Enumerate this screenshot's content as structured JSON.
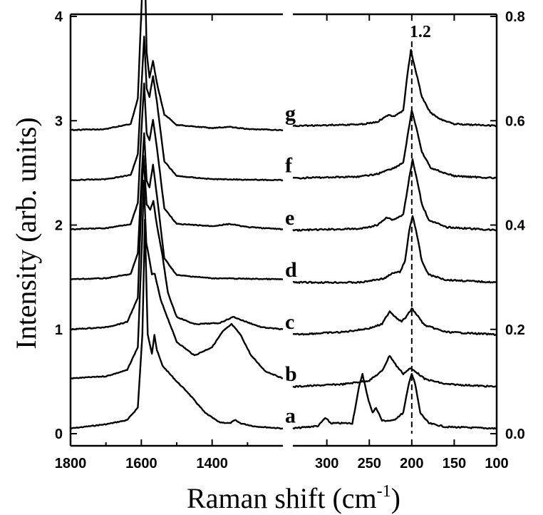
{
  "chart_data": {
    "type": "line",
    "xlabel": "Raman shift (cm",
    "xlabel_sup": "-1",
    "xlabel_close": ")",
    "ylabel": "Intensity (arb. units)",
    "left_panel": {
      "xlim": [
        1800,
        1200
      ],
      "xticks": [
        "1800",
        "1600",
        "1400"
      ],
      "xtick_values": [
        1800,
        1600,
        1400
      ],
      "ylim": [
        0,
        4
      ],
      "yticks": [
        "0",
        "1",
        "2",
        "3",
        "4"
      ],
      "ytick_values": [
        0,
        1,
        2,
        3,
        4
      ]
    },
    "right_panel": {
      "xlim": [
        340,
        100
      ],
      "xticks": [
        "300",
        "250",
        "200",
        "150",
        "100"
      ],
      "xtick_values": [
        300,
        250,
        200,
        150,
        100
      ],
      "ylim": [
        0,
        0.8
      ],
      "yticks": [
        "0.0",
        "0.2",
        "0.4",
        "0.6",
        "0.8"
      ],
      "ytick_values": [
        0.0,
        0.2,
        0.4,
        0.6,
        0.8
      ]
    },
    "annotation": {
      "label": "1.2",
      "x": 200
    },
    "series": [
      {
        "name": "a",
        "left_offset": 0.05,
        "right_offset": 0.01,
        "left_points": [
          [
            1800,
            0.0
          ],
          [
            1700,
            0.04
          ],
          [
            1640,
            0.08
          ],
          [
            1610,
            0.2
          ],
          [
            1597,
            0.9
          ],
          [
            1590,
            2.0
          ],
          [
            1582,
            0.9
          ],
          [
            1570,
            0.72
          ],
          [
            1563,
            0.9
          ],
          [
            1556,
            0.75
          ],
          [
            1540,
            0.6
          ],
          [
            1500,
            0.45
          ],
          [
            1470,
            0.35
          ],
          [
            1420,
            0.15
          ],
          [
            1380,
            0.06
          ],
          [
            1350,
            0.05
          ],
          [
            1335,
            0.08
          ],
          [
            1320,
            0.05
          ],
          [
            1280,
            0.02
          ],
          [
            1200,
            0.0
          ]
        ],
        "right_points": [
          [
            340,
            0.0
          ],
          [
            310,
            0.005
          ],
          [
            302,
            0.02
          ],
          [
            295,
            0.01
          ],
          [
            270,
            0.01
          ],
          [
            262,
            0.08
          ],
          [
            258,
            0.105
          ],
          [
            252,
            0.06
          ],
          [
            246,
            0.03
          ],
          [
            242,
            0.04
          ],
          [
            235,
            0.015
          ],
          [
            222,
            0.015
          ],
          [
            210,
            0.03
          ],
          [
            203,
            0.09
          ],
          [
            200,
            0.105
          ],
          [
            196,
            0.085
          ],
          [
            190,
            0.03
          ],
          [
            180,
            0.01
          ],
          [
            160,
            0.003
          ],
          [
            100,
            0.0
          ]
        ]
      },
      {
        "name": "b",
        "left_offset": 0.53,
        "right_offset": 0.09,
        "left_points": [
          [
            1800,
            0.0
          ],
          [
            1700,
            0.02
          ],
          [
            1640,
            0.08
          ],
          [
            1610,
            0.3
          ],
          [
            1598,
            1.3
          ],
          [
            1593,
            1.9
          ],
          [
            1586,
            1.3
          ],
          [
            1570,
            1.0
          ],
          [
            1562,
            1.0
          ],
          [
            1545,
            0.75
          ],
          [
            1500,
            0.35
          ],
          [
            1450,
            0.22
          ],
          [
            1400,
            0.3
          ],
          [
            1370,
            0.45
          ],
          [
            1345,
            0.52
          ],
          [
            1320,
            0.42
          ],
          [
            1290,
            0.22
          ],
          [
            1250,
            0.07
          ],
          [
            1200,
            0.0
          ]
        ],
        "right_points": [
          [
            340,
            0.0
          ],
          [
            280,
            0.005
          ],
          [
            250,
            0.012
          ],
          [
            235,
            0.03
          ],
          [
            226,
            0.06
          ],
          [
            218,
            0.04
          ],
          [
            210,
            0.025
          ],
          [
            202,
            0.035
          ],
          [
            196,
            0.03
          ],
          [
            185,
            0.015
          ],
          [
            160,
            0.005
          ],
          [
            100,
            0.0
          ]
        ]
      },
      {
        "name": "c",
        "left_offset": 1.0,
        "right_offset": 0.19,
        "left_points": [
          [
            1800,
            0.0
          ],
          [
            1700,
            0.02
          ],
          [
            1640,
            0.07
          ],
          [
            1610,
            0.3
          ],
          [
            1599,
            1.3
          ],
          [
            1594,
            1.66
          ],
          [
            1585,
            1.2
          ],
          [
            1575,
            1.15
          ],
          [
            1566,
            1.23
          ],
          [
            1556,
            1.0
          ],
          [
            1540,
            0.7
          ],
          [
            1525,
            0.35
          ],
          [
            1500,
            0.12
          ],
          [
            1450,
            0.05
          ],
          [
            1380,
            0.06
          ],
          [
            1340,
            0.12
          ],
          [
            1310,
            0.08
          ],
          [
            1260,
            0.02
          ],
          [
            1200,
            0.0
          ]
        ],
        "right_points": [
          [
            340,
            0.0
          ],
          [
            280,
            0.005
          ],
          [
            250,
            0.012
          ],
          [
            235,
            0.02
          ],
          [
            226,
            0.045
          ],
          [
            220,
            0.035
          ],
          [
            212,
            0.025
          ],
          [
            206,
            0.035
          ],
          [
            200,
            0.05
          ],
          [
            195,
            0.04
          ],
          [
            185,
            0.018
          ],
          [
            160,
            0.005
          ],
          [
            100,
            0.0
          ]
        ]
      },
      {
        "name": "d",
        "left_offset": 1.48,
        "right_offset": 0.29,
        "left_points": [
          [
            1800,
            0.0
          ],
          [
            1700,
            0.01
          ],
          [
            1630,
            0.05
          ],
          [
            1610,
            0.25
          ],
          [
            1598,
            1.05
          ],
          [
            1592,
            1.4
          ],
          [
            1585,
            0.95
          ],
          [
            1577,
            0.88
          ],
          [
            1567,
            1.1
          ],
          [
            1556,
            0.8
          ],
          [
            1535,
            0.2
          ],
          [
            1500,
            0.04
          ],
          [
            1400,
            0.01
          ],
          [
            1200,
            0.0
          ]
        ],
        "right_points": [
          [
            340,
            0.0
          ],
          [
            260,
            0.0
          ],
          [
            232,
            0.008
          ],
          [
            222,
            0.018
          ],
          [
            214,
            0.02
          ],
          [
            208,
            0.04
          ],
          [
            203,
            0.1
          ],
          [
            199,
            0.128
          ],
          [
            195,
            0.1
          ],
          [
            188,
            0.04
          ],
          [
            180,
            0.015
          ],
          [
            160,
            0.005
          ],
          [
            100,
            0.0
          ]
        ]
      },
      {
        "name": "e",
        "left_offset": 1.96,
        "right_offset": 0.39,
        "left_points": [
          [
            1800,
            0.0
          ],
          [
            1700,
            0.01
          ],
          [
            1630,
            0.05
          ],
          [
            1610,
            0.25
          ],
          [
            1598,
            1.05
          ],
          [
            1592,
            1.4
          ],
          [
            1585,
            0.92
          ],
          [
            1577,
            0.85
          ],
          [
            1567,
            1.05
          ],
          [
            1556,
            0.78
          ],
          [
            1535,
            0.2
          ],
          [
            1500,
            0.05
          ],
          [
            1400,
            0.03
          ],
          [
            1350,
            0.05
          ],
          [
            1300,
            0.02
          ],
          [
            1200,
            0.0
          ]
        ],
        "right_points": [
          [
            340,
            0.0
          ],
          [
            260,
            0.003
          ],
          [
            240,
            0.01
          ],
          [
            230,
            0.025
          ],
          [
            222,
            0.02
          ],
          [
            210,
            0.03
          ],
          [
            203,
            0.1
          ],
          [
            199,
            0.135
          ],
          [
            195,
            0.105
          ],
          [
            188,
            0.05
          ],
          [
            180,
            0.02
          ],
          [
            160,
            0.006
          ],
          [
            100,
            0.0
          ]
        ]
      },
      {
        "name": "f",
        "left_offset": 2.43,
        "right_offset": 0.49,
        "left_points": [
          [
            1800,
            0.0
          ],
          [
            1700,
            0.01
          ],
          [
            1630,
            0.05
          ],
          [
            1610,
            0.25
          ],
          [
            1598,
            1.0
          ],
          [
            1592,
            1.38
          ],
          [
            1585,
            0.88
          ],
          [
            1577,
            0.8
          ],
          [
            1567,
            1.0
          ],
          [
            1556,
            0.75
          ],
          [
            1535,
            0.18
          ],
          [
            1500,
            0.04
          ],
          [
            1400,
            0.01
          ],
          [
            1200,
            0.0
          ]
        ],
        "right_points": [
          [
            340,
            0.0
          ],
          [
            260,
            0.003
          ],
          [
            240,
            0.008
          ],
          [
            230,
            0.015
          ],
          [
            220,
            0.02
          ],
          [
            210,
            0.03
          ],
          [
            204,
            0.09
          ],
          [
            200,
            0.13
          ],
          [
            196,
            0.105
          ],
          [
            188,
            0.05
          ],
          [
            178,
            0.02
          ],
          [
            165,
            0.012
          ],
          [
            150,
            0.004
          ],
          [
            100,
            0.0
          ]
        ]
      },
      {
        "name": "g",
        "left_offset": 2.91,
        "right_offset": 0.59,
        "left_points": [
          [
            1800,
            0.0
          ],
          [
            1700,
            0.01
          ],
          [
            1630,
            0.06
          ],
          [
            1610,
            0.3
          ],
          [
            1598,
            1.3
          ],
          [
            1592,
            1.95
          ],
          [
            1585,
            0.75
          ],
          [
            1577,
            0.5
          ],
          [
            1567,
            0.66
          ],
          [
            1556,
            0.45
          ],
          [
            1535,
            0.15
          ],
          [
            1500,
            0.05
          ],
          [
            1400,
            0.02
          ],
          [
            1350,
            0.03
          ],
          [
            1300,
            0.01
          ],
          [
            1200,
            0.0
          ]
        ],
        "right_points": [
          [
            340,
            0.0
          ],
          [
            260,
            0.003
          ],
          [
            240,
            0.008
          ],
          [
            230,
            0.02
          ],
          [
            220,
            0.02
          ],
          [
            210,
            0.03
          ],
          [
            205,
            0.1
          ],
          [
            201,
            0.145
          ],
          [
            196,
            0.11
          ],
          [
            188,
            0.055
          ],
          [
            178,
            0.025
          ],
          [
            165,
            0.012
          ],
          [
            150,
            0.004
          ],
          [
            100,
            0.0
          ]
        ]
      }
    ]
  }
}
